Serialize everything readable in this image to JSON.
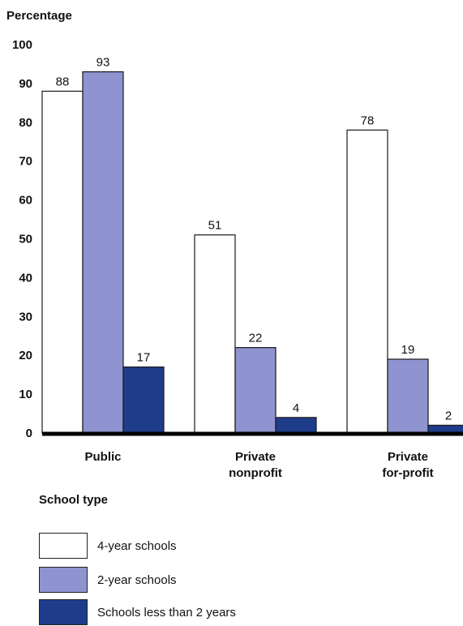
{
  "chart_data": {
    "type": "bar",
    "ylabel": "Percentage",
    "xlabel": "School type",
    "ylim": [
      0,
      100
    ],
    "yticks": [
      0,
      10,
      20,
      30,
      40,
      50,
      60,
      70,
      80,
      90,
      100
    ],
    "categories": [
      [
        "Public"
      ],
      [
        "Private",
        "nonprofit"
      ],
      [
        "Private",
        "for-profit"
      ]
    ],
    "series": [
      {
        "name": "4-year schools",
        "color": "#ffffff",
        "values": [
          88,
          51,
          78
        ]
      },
      {
        "name": "2-year schools",
        "color": "#8f93d0",
        "values": [
          93,
          22,
          19
        ]
      },
      {
        "name": "Schools less than 2 years",
        "color": "#1f3c8a",
        "values": [
          17,
          4,
          2
        ]
      }
    ],
    "grid": false,
    "legend_position": "bottom-left"
  }
}
